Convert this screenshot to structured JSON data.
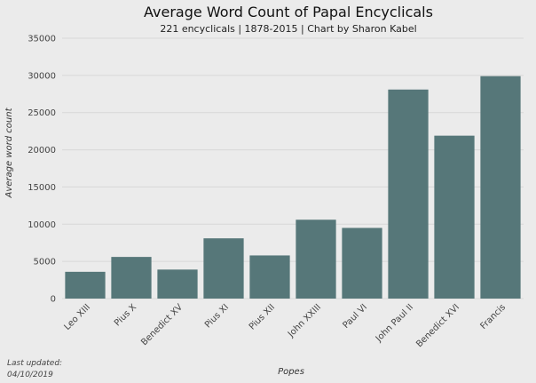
{
  "chart_data": {
    "type": "bar",
    "title": "Average Word Count of Papal Encyclicals",
    "subtitle": "221 encyclicals | 1878-2015 | Chart by Sharon Kabel",
    "xlabel": "Popes",
    "ylabel": "Average word count",
    "ylim": [
      0,
      35000
    ],
    "yticks": [
      0,
      5000,
      10000,
      15000,
      20000,
      25000,
      30000,
      35000
    ],
    "categories": [
      "Leo XIII",
      "Pius X",
      "Benedict XV",
      "Pius XI",
      "Pius XII",
      "John XXIII",
      "Paul VI",
      "John Paul II",
      "Benedict XVI",
      "Francis"
    ],
    "values": [
      3600,
      5600,
      3900,
      8100,
      5800,
      10600,
      9500,
      28100,
      21900,
      29900
    ],
    "grid": true,
    "bar_color": "#567779",
    "background": "#ebebeb"
  },
  "footnote": {
    "line1": "Last updated:",
    "line2": "04/10/2019"
  }
}
